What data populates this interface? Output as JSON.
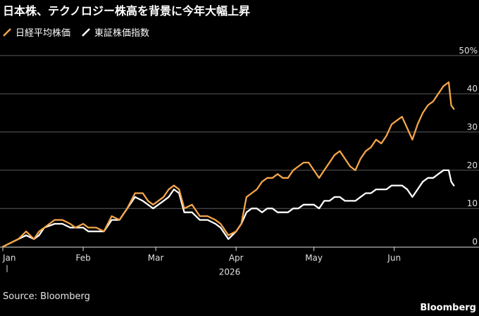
{
  "title": "日本株、テクノロジー株高を背景に今年大幅上昇",
  "legend": [
    {
      "name": "日経平均株価",
      "color": "#f5a54a"
    },
    {
      "name": "東証株価指数",
      "color": "#ffffff"
    }
  ],
  "source": "Source: Bloomberg",
  "brand": "Bloomberg",
  "chart_data": {
    "type": "line",
    "title": "日本株、テクノロジー株高を背景に今年大幅上昇",
    "y_ticks": [
      "50%",
      "40",
      "30",
      "20",
      "10",
      "0"
    ],
    "y_tick_values": [
      50,
      40,
      30,
      20,
      10,
      0
    ],
    "ylim": [
      -1,
      52
    ],
    "x_tick_labels": [
      "Jan",
      "Feb",
      "Mar",
      "Apr",
      "May",
      "Jun"
    ],
    "x_tick_values": [
      0,
      31,
      59,
      90,
      120,
      151
    ],
    "x_year_label": "2026",
    "xlim": [
      0,
      175
    ],
    "grid": true,
    "legend_position": "top-left",
    "series": [
      {
        "name": "日経平均株価",
        "color": "#f5a54a",
        "x": [
          0,
          3,
          6,
          9,
          12,
          14,
          16,
          20,
          23,
          26,
          28,
          31,
          33,
          36,
          39,
          42,
          45,
          48,
          51,
          54,
          56,
          58,
          60,
          62,
          64,
          66,
          68,
          70,
          73,
          76,
          79,
          82,
          84,
          87,
          90,
          92,
          94,
          96,
          98,
          100,
          102,
          104,
          106,
          108,
          110,
          112,
          114,
          116,
          118,
          120,
          122,
          124,
          126,
          128,
          130,
          132,
          134,
          136,
          138,
          140,
          142,
          144,
          146,
          148,
          150,
          152,
          154,
          156,
          158,
          160,
          162,
          164,
          166,
          168,
          170,
          172,
          173,
          174
        ],
        "y": [
          0,
          1,
          2,
          4,
          2,
          4,
          5,
          7,
          7,
          6,
          5,
          6,
          5,
          5,
          4,
          8,
          7,
          10,
          14,
          14,
          12,
          11,
          12,
          13,
          15,
          16,
          15,
          10,
          11,
          8,
          8,
          7,
          6,
          3,
          4,
          6,
          13,
          14,
          15,
          17,
          18,
          18,
          19,
          18,
          18,
          20,
          21,
          22,
          22,
          20,
          18,
          20,
          22,
          24,
          25,
          23,
          21,
          20,
          23,
          25,
          26,
          28,
          27,
          29,
          32,
          33,
          34,
          31,
          28,
          32,
          35,
          37,
          38,
          40,
          42,
          43,
          37,
          36
        ]
      },
      {
        "name": "東証株価指数",
        "color": "#ffffff",
        "x": [
          0,
          3,
          6,
          9,
          12,
          14,
          16,
          20,
          23,
          26,
          28,
          31,
          33,
          36,
          39,
          42,
          45,
          48,
          51,
          54,
          56,
          58,
          60,
          62,
          64,
          66,
          68,
          70,
          73,
          76,
          79,
          82,
          84,
          87,
          90,
          92,
          94,
          96,
          98,
          100,
          102,
          104,
          106,
          108,
          110,
          112,
          114,
          116,
          118,
          120,
          122,
          124,
          126,
          128,
          130,
          132,
          134,
          136,
          138,
          140,
          142,
          144,
          146,
          148,
          150,
          152,
          154,
          156,
          158,
          160,
          162,
          164,
          166,
          168,
          170,
          172,
          173,
          174
        ],
        "y": [
          0,
          1,
          2,
          3,
          2,
          3,
          5,
          6,
          6,
          5,
          5,
          5,
          4,
          4,
          4,
          7,
          7,
          10,
          13,
          12,
          11,
          10,
          11,
          12,
          13,
          15,
          14,
          9,
          9,
          7,
          7,
          6,
          5,
          2,
          4,
          6,
          9,
          10,
          10,
          9,
          10,
          10,
          9,
          9,
          9,
          10,
          10,
          11,
          11,
          11,
          10,
          12,
          12,
          13,
          13,
          12,
          12,
          12,
          13,
          14,
          14,
          15,
          15,
          15,
          16,
          16,
          16,
          15,
          13,
          15,
          17,
          18,
          18,
          19,
          20,
          20,
          17,
          16
        ]
      }
    ]
  }
}
